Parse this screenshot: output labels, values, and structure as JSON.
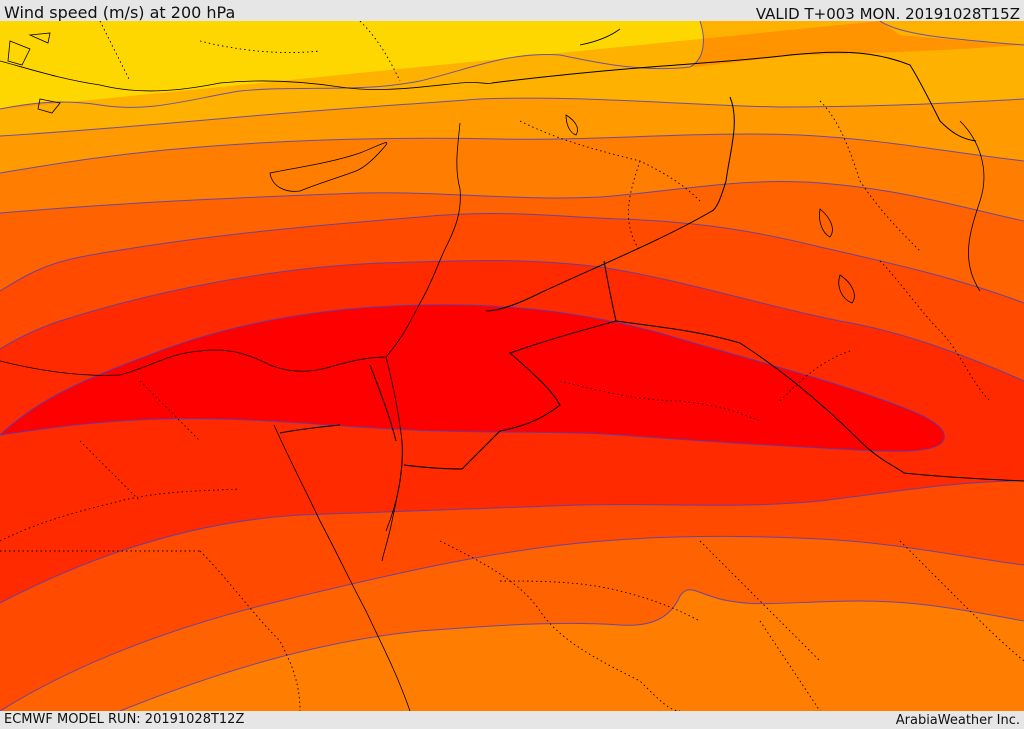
{
  "header": {
    "title": "Wind speed (m/s) at 200 hPa",
    "valid": "VALID T+003 MON. 20191028T15Z"
  },
  "footer": {
    "model_run": "ECMWF MODEL RUN: 20191028T12Z",
    "credit": "ArabiaWeather Inc."
  },
  "map": {
    "field": "wind speed",
    "level": "200 hPa",
    "shading_colors": [
      "#ffd700",
      "#ffaa00",
      "#ff9300",
      "#ff7400",
      "#ff5a00",
      "#ff3e00",
      "#ff2200",
      "#ff0000"
    ],
    "contour_color": "#4b3cc4",
    "coastline_color": "#000000",
    "border_style": "solid",
    "province_border_style": "dotted"
  }
}
